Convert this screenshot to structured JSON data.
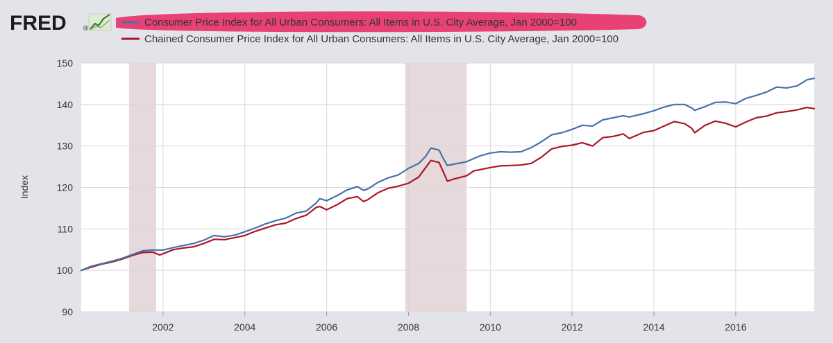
{
  "logo": {
    "text": "FRED",
    "registered_mark": "®",
    "icon": "trend-line-icon"
  },
  "colors": {
    "background": "#e3e4e9",
    "plot_background": "#ffffff",
    "grid": "#d8d8d8",
    "recession": "#e6d8db",
    "highlight": "#e8336b"
  },
  "chart_data": {
    "type": "line",
    "ylabel": "Index",
    "xlabel": "",
    "ylim": [
      90,
      150
    ],
    "xlim": [
      2000.0,
      2017.92
    ],
    "yticks": [
      90,
      100,
      110,
      120,
      130,
      140,
      150
    ],
    "xticks": [
      2002,
      2004,
      2006,
      2008,
      2010,
      2012,
      2014,
      2016
    ],
    "grid": true,
    "legend_position": "top",
    "recessions": [
      {
        "start": 2001.17,
        "end": 2001.83
      },
      {
        "start": 2007.92,
        "end": 2009.42
      }
    ],
    "series": [
      {
        "name": "Consumer Price Index for All Urban Consumers: All Items in U.S. City Average, Jan 2000=100",
        "color": "#4572a7",
        "highlighted": true,
        "points": [
          [
            2000.0,
            100.0
          ],
          [
            2000.25,
            101.0
          ],
          [
            2000.5,
            101.6
          ],
          [
            2000.75,
            102.2
          ],
          [
            2001.0,
            102.9
          ],
          [
            2001.25,
            103.8
          ],
          [
            2001.5,
            104.7
          ],
          [
            2001.75,
            104.9
          ],
          [
            2002.0,
            104.9
          ],
          [
            2002.25,
            105.5
          ],
          [
            2002.5,
            106.0
          ],
          [
            2002.75,
            106.5
          ],
          [
            2003.0,
            107.3
          ],
          [
            2003.25,
            108.4
          ],
          [
            2003.5,
            108.1
          ],
          [
            2003.75,
            108.5
          ],
          [
            2004.0,
            109.3
          ],
          [
            2004.25,
            110.2
          ],
          [
            2004.5,
            111.2
          ],
          [
            2004.75,
            112.0
          ],
          [
            2005.0,
            112.6
          ],
          [
            2005.25,
            113.8
          ],
          [
            2005.5,
            114.3
          ],
          [
            2005.75,
            116.3
          ],
          [
            2005.83,
            117.3
          ],
          [
            2006.0,
            116.8
          ],
          [
            2006.25,
            118.0
          ],
          [
            2006.5,
            119.4
          ],
          [
            2006.75,
            120.2
          ],
          [
            2006.9,
            119.3
          ],
          [
            2007.0,
            119.6
          ],
          [
            2007.25,
            121.2
          ],
          [
            2007.5,
            122.3
          ],
          [
            2007.75,
            123.0
          ],
          [
            2008.0,
            124.6
          ],
          [
            2008.25,
            125.8
          ],
          [
            2008.42,
            127.5
          ],
          [
            2008.55,
            129.5
          ],
          [
            2008.75,
            129.0
          ],
          [
            2008.85,
            127.0
          ],
          [
            2008.95,
            125.3
          ],
          [
            2009.1,
            125.6
          ],
          [
            2009.42,
            126.2
          ],
          [
            2009.6,
            127.0
          ],
          [
            2009.75,
            127.6
          ],
          [
            2010.0,
            128.3
          ],
          [
            2010.25,
            128.6
          ],
          [
            2010.5,
            128.5
          ],
          [
            2010.75,
            128.6
          ],
          [
            2011.0,
            129.6
          ],
          [
            2011.25,
            131.0
          ],
          [
            2011.5,
            132.7
          ],
          [
            2011.75,
            133.2
          ],
          [
            2012.0,
            134.0
          ],
          [
            2012.25,
            135.0
          ],
          [
            2012.5,
            134.8
          ],
          [
            2012.75,
            136.3
          ],
          [
            2013.0,
            136.8
          ],
          [
            2013.25,
            137.3
          ],
          [
            2013.4,
            137.0
          ],
          [
            2013.75,
            137.8
          ],
          [
            2014.0,
            138.5
          ],
          [
            2014.25,
            139.4
          ],
          [
            2014.5,
            140.0
          ],
          [
            2014.75,
            140.0
          ],
          [
            2014.92,
            139.2
          ],
          [
            2015.0,
            138.6
          ],
          [
            2015.25,
            139.5
          ],
          [
            2015.5,
            140.5
          ],
          [
            2015.75,
            140.6
          ],
          [
            2016.0,
            140.2
          ],
          [
            2016.25,
            141.5
          ],
          [
            2016.5,
            142.2
          ],
          [
            2016.75,
            143.0
          ],
          [
            2017.0,
            144.2
          ],
          [
            2017.25,
            144.0
          ],
          [
            2017.5,
            144.5
          ],
          [
            2017.75,
            146.0
          ],
          [
            2017.92,
            146.3
          ]
        ]
      },
      {
        "name": "Chained Consumer Price Index for All Urban Consumers: All Items in U.S. City Average, Jan 2000=100",
        "color": "#aa1628",
        "highlighted": false,
        "points": [
          [
            2000.0,
            100.0
          ],
          [
            2000.25,
            100.8
          ],
          [
            2000.5,
            101.5
          ],
          [
            2000.75,
            102.0
          ],
          [
            2001.0,
            102.7
          ],
          [
            2001.25,
            103.6
          ],
          [
            2001.5,
            104.3
          ],
          [
            2001.75,
            104.4
          ],
          [
            2001.92,
            103.7
          ],
          [
            2002.0,
            104.0
          ],
          [
            2002.25,
            105.0
          ],
          [
            2002.5,
            105.4
          ],
          [
            2002.75,
            105.7
          ],
          [
            2003.0,
            106.5
          ],
          [
            2003.25,
            107.5
          ],
          [
            2003.5,
            107.4
          ],
          [
            2003.75,
            107.9
          ],
          [
            2004.0,
            108.4
          ],
          [
            2004.25,
            109.4
          ],
          [
            2004.5,
            110.2
          ],
          [
            2004.75,
            111.0
          ],
          [
            2005.0,
            111.4
          ],
          [
            2005.25,
            112.5
          ],
          [
            2005.5,
            113.3
          ],
          [
            2005.75,
            115.2
          ],
          [
            2005.83,
            115.4
          ],
          [
            2006.0,
            114.6
          ],
          [
            2006.25,
            115.8
          ],
          [
            2006.5,
            117.3
          ],
          [
            2006.75,
            117.8
          ],
          [
            2006.9,
            116.6
          ],
          [
            2007.0,
            117.0
          ],
          [
            2007.25,
            118.7
          ],
          [
            2007.5,
            119.8
          ],
          [
            2007.75,
            120.3
          ],
          [
            2008.0,
            121.0
          ],
          [
            2008.25,
            122.5
          ],
          [
            2008.42,
            124.8
          ],
          [
            2008.55,
            126.5
          ],
          [
            2008.75,
            126.0
          ],
          [
            2008.85,
            123.8
          ],
          [
            2008.95,
            121.5
          ],
          [
            2009.1,
            122.0
          ],
          [
            2009.42,
            122.8
          ],
          [
            2009.6,
            124.0
          ],
          [
            2009.75,
            124.3
          ],
          [
            2010.0,
            124.8
          ],
          [
            2010.25,
            125.2
          ],
          [
            2010.5,
            125.3
          ],
          [
            2010.75,
            125.4
          ],
          [
            2011.0,
            125.8
          ],
          [
            2011.25,
            127.3
          ],
          [
            2011.5,
            129.3
          ],
          [
            2011.75,
            129.9
          ],
          [
            2012.0,
            130.2
          ],
          [
            2012.25,
            130.8
          ],
          [
            2012.5,
            130.0
          ],
          [
            2012.75,
            132.0
          ],
          [
            2013.0,
            132.3
          ],
          [
            2013.25,
            132.9
          ],
          [
            2013.4,
            131.8
          ],
          [
            2013.75,
            133.3
          ],
          [
            2014.0,
            133.7
          ],
          [
            2014.25,
            134.8
          ],
          [
            2014.5,
            135.9
          ],
          [
            2014.75,
            135.4
          ],
          [
            2014.92,
            134.3
          ],
          [
            2015.0,
            133.2
          ],
          [
            2015.25,
            135.0
          ],
          [
            2015.5,
            136.0
          ],
          [
            2015.75,
            135.5
          ],
          [
            2016.0,
            134.6
          ],
          [
            2016.25,
            135.8
          ],
          [
            2016.5,
            136.8
          ],
          [
            2016.75,
            137.2
          ],
          [
            2017.0,
            138.0
          ],
          [
            2017.25,
            138.3
          ],
          [
            2017.5,
            138.7
          ],
          [
            2017.75,
            139.3
          ],
          [
            2017.92,
            139.0
          ]
        ]
      }
    ]
  }
}
